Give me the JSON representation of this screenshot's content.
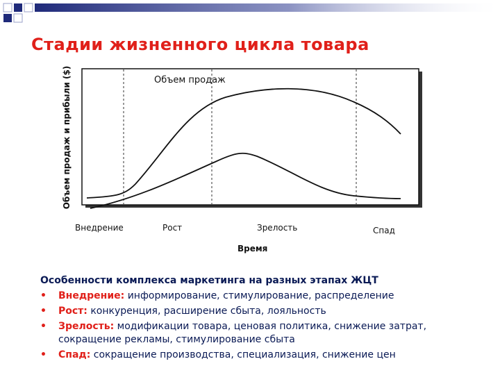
{
  "slide": {
    "title": "Стадии жизненного цикла товара"
  },
  "diagram": {
    "y_axis_label": "Объем продаж и прибыли ($)",
    "x_axis_label": "Время",
    "sales_curve_label": "Объем продаж",
    "stages": [
      "Внедрение",
      "Рост",
      "Зрелость",
      "Спад"
    ]
  },
  "notes": {
    "heading": "Особенности комплекса маркетинга на разных этапах ЖЦТ",
    "bullet_symbol": "•",
    "items": [
      {
        "stage": "Внедрение:",
        "text": " информирование, стимулирование, распределение"
      },
      {
        "stage": "Рост:",
        "text": " конкуренция, расширение сбыта, лояльность"
      },
      {
        "stage": "Зрелость:",
        "text": " модификации товара, ценовая политика, снижение затрат, сокращение рекламы, стимулирование сбыта"
      },
      {
        "stage": "Спад:",
        "text": " сокращение производства, специализация, снижение цен"
      }
    ]
  },
  "colors": {
    "title": "#e0201a",
    "text": "#0a1a55",
    "decor": "#1f2a7a"
  }
}
